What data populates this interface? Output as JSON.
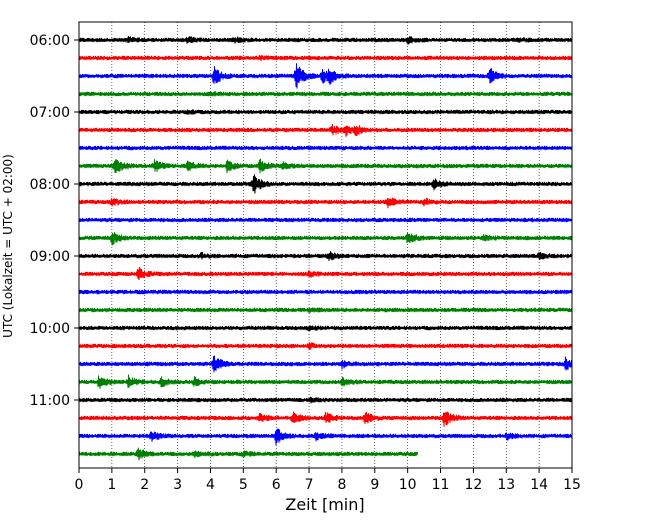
{
  "chart_data": {
    "type": "line",
    "title": "",
    "xlabel": "Zeit  [min]",
    "ylabel": "UTC (Lokalzeit = UTC + 02:00)",
    "xlim": [
      0,
      15
    ],
    "x_ticks": [
      0,
      1,
      2,
      3,
      4,
      5,
      6,
      7,
      8,
      9,
      10,
      11,
      12,
      13,
      14,
      15
    ],
    "x_tick_labels": [
      "0",
      "1",
      "2",
      "3",
      "4",
      "5",
      "6",
      "7",
      "8",
      "9",
      "10",
      "11",
      "12",
      "13",
      "14",
      "15"
    ],
    "y_tick_labels": [
      "06:00",
      "07:00",
      "08:00",
      "09:00",
      "10:00",
      "11:00"
    ],
    "y_tick_rows": [
      0,
      4,
      8,
      12,
      16,
      20
    ],
    "grid": "vertical dotted",
    "trace_interval_min": 15,
    "trace_colors": [
      "#000000",
      "#ff0000",
      "#0000ff",
      "#008000"
    ],
    "traces": [
      {
        "start": "06:00",
        "color": "#000000",
        "end_min": 15,
        "events": [
          [
            1.5,
            0.18
          ],
          [
            3.3,
            0.22
          ],
          [
            4.7,
            0.2
          ],
          [
            10.0,
            0.25
          ],
          [
            13.3,
            0.15
          ]
        ]
      },
      {
        "start": "06:15",
        "color": "#ff0000",
        "end_min": 15,
        "events": [
          [
            5.5,
            0.12
          ]
        ]
      },
      {
        "start": "06:30",
        "color": "#0000ff",
        "end_min": 15,
        "events": [
          [
            4.1,
            0.9
          ],
          [
            6.6,
            1.2
          ],
          [
            7.4,
            0.6
          ],
          [
            7.6,
            0.6
          ],
          [
            12.5,
            0.7
          ]
        ]
      },
      {
        "start": "06:45",
        "color": "#008000",
        "end_min": 15,
        "events": [
          [
            4.0,
            0.12
          ]
        ]
      },
      {
        "start": "07:00",
        "color": "#000000",
        "end_min": 15,
        "events": [
          [
            3.3,
            0.1
          ]
        ]
      },
      {
        "start": "07:15",
        "color": "#ff0000",
        "end_min": 15,
        "events": [
          [
            7.7,
            0.4
          ],
          [
            8.1,
            0.45
          ],
          [
            8.4,
            0.4
          ]
        ]
      },
      {
        "start": "07:30",
        "color": "#0000ff",
        "end_min": 15,
        "events": []
      },
      {
        "start": "07:45",
        "color": "#008000",
        "end_min": 15,
        "events": [
          [
            1.1,
            0.9
          ],
          [
            2.3,
            0.5
          ],
          [
            3.3,
            0.5
          ],
          [
            4.5,
            0.5
          ],
          [
            5.5,
            0.55
          ],
          [
            6.2,
            0.3
          ]
        ]
      },
      {
        "start": "08:00",
        "color": "#000000",
        "end_min": 15,
        "events": [
          [
            5.3,
            0.9
          ],
          [
            10.8,
            0.4
          ]
        ]
      },
      {
        "start": "08:15",
        "color": "#ff0000",
        "end_min": 15,
        "events": [
          [
            1.0,
            0.3
          ],
          [
            9.4,
            0.4
          ],
          [
            10.5,
            0.25
          ]
        ]
      },
      {
        "start": "08:30",
        "color": "#0000ff",
        "end_min": 15,
        "events": []
      },
      {
        "start": "08:45",
        "color": "#008000",
        "end_min": 15,
        "events": [
          [
            1.0,
            0.55
          ],
          [
            10.0,
            0.6
          ],
          [
            12.3,
            0.25
          ]
        ]
      },
      {
        "start": "09:00",
        "color": "#000000",
        "end_min": 15,
        "events": [
          [
            3.7,
            0.2
          ],
          [
            7.6,
            0.35
          ],
          [
            14.0,
            0.25
          ]
        ]
      },
      {
        "start": "09:15",
        "color": "#ff0000",
        "end_min": 15,
        "events": [
          [
            1.8,
            0.55
          ],
          [
            7.0,
            0.2
          ]
        ]
      },
      {
        "start": "09:30",
        "color": "#0000ff",
        "end_min": 15,
        "events": []
      },
      {
        "start": "09:45",
        "color": "#008000",
        "end_min": 15,
        "events": [
          [
            7.0,
            0.15
          ]
        ]
      },
      {
        "start": "10:00",
        "color": "#000000",
        "end_min": 15,
        "events": [
          [
            7.0,
            0.15
          ]
        ]
      },
      {
        "start": "10:15",
        "color": "#ff0000",
        "end_min": 15,
        "events": [
          [
            7.0,
            0.2
          ]
        ]
      },
      {
        "start": "10:30",
        "color": "#0000ff",
        "end_min": 15,
        "events": [
          [
            4.1,
            0.8
          ],
          [
            8.0,
            0.3
          ],
          [
            14.8,
            0.5
          ]
        ]
      },
      {
        "start": "10:45",
        "color": "#008000",
        "end_min": 15,
        "events": [
          [
            0.6,
            0.6
          ],
          [
            1.5,
            0.5
          ],
          [
            2.5,
            0.4
          ],
          [
            3.5,
            0.35
          ],
          [
            8.0,
            0.3
          ]
        ]
      },
      {
        "start": "11:00",
        "color": "#000000",
        "end_min": 15,
        "events": [
          [
            7.0,
            0.15
          ]
        ]
      },
      {
        "start": "11:15",
        "color": "#ff0000",
        "end_min": 15,
        "events": [
          [
            5.5,
            0.4
          ],
          [
            6.5,
            0.5
          ],
          [
            7.5,
            0.45
          ],
          [
            8.7,
            0.5
          ],
          [
            11.1,
            0.8
          ]
        ]
      },
      {
        "start": "11:30",
        "color": "#0000ff",
        "end_min": 15,
        "events": [
          [
            2.2,
            0.5
          ],
          [
            6.0,
            0.8
          ],
          [
            7.2,
            0.35
          ],
          [
            13.0,
            0.3
          ]
        ]
      },
      {
        "start": "11:45",
        "color": "#008000",
        "end_min": 10.3,
        "events": [
          [
            1.8,
            0.5
          ],
          [
            3.5,
            0.25
          ],
          [
            5.0,
            0.2
          ]
        ]
      }
    ]
  }
}
